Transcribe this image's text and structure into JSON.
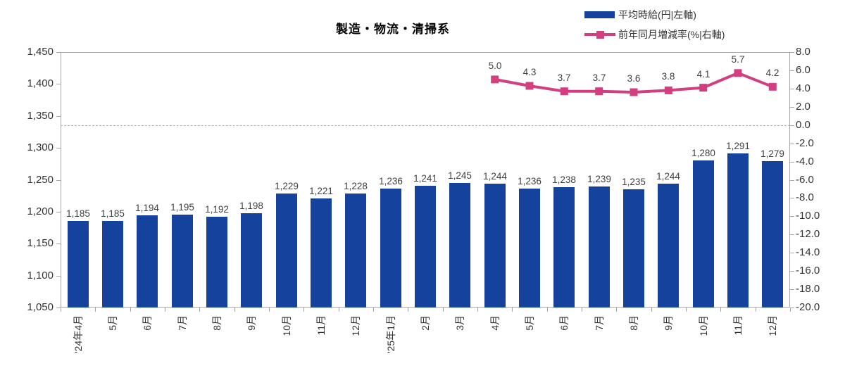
{
  "title": "製造・物流・清掃系",
  "legend": [
    {
      "label": "平均時給(円|左軸)",
      "color": "#15429D",
      "type": "bar"
    },
    {
      "label": "前年同月増減率(%|右軸)",
      "color": "#D23E7F",
      "type": "line"
    }
  ],
  "chart_data": {
    "type": "combo",
    "title": "製造・物流・清掃系",
    "categories": [
      "'24年4月",
      "5月",
      "6月",
      "7月",
      "8月",
      "9月",
      "10月",
      "11月",
      "12月",
      "'25年1月",
      "2月",
      "3月",
      "4月",
      "5月",
      "6月",
      "7月",
      "8月",
      "9月",
      "10月",
      "11月",
      "12月"
    ],
    "series": [
      {
        "name": "平均時給(円|左軸)",
        "type": "bar",
        "axis": "left",
        "color": "#15429D",
        "values": [
          1185,
          1185,
          1194,
          1195,
          1192,
          1198,
          1229,
          1221,
          1228,
          1236,
          1241,
          1245,
          1244,
          1236,
          1238,
          1239,
          1235,
          1244,
          1280,
          1291,
          1279
        ],
        "labels": [
          "1,185",
          "1,185",
          "1,194",
          "1,195",
          "1,192",
          "1,198",
          "1,229",
          "1,221",
          "1,228",
          "1,236",
          "1,241",
          "1,245",
          "1,244",
          "1,236",
          "1,238",
          "1,239",
          "1,235",
          "1,244",
          "1,280",
          "1,291",
          "1,279"
        ]
      },
      {
        "name": "前年同月増減率(%|右軸)",
        "type": "line",
        "axis": "right",
        "color": "#D23E7F",
        "values": [
          null,
          null,
          null,
          null,
          null,
          null,
          null,
          null,
          null,
          null,
          null,
          null,
          5.0,
          4.3,
          3.7,
          3.7,
          3.6,
          3.8,
          4.1,
          5.7,
          4.2
        ],
        "labels": [
          null,
          null,
          null,
          null,
          null,
          null,
          null,
          null,
          null,
          null,
          null,
          null,
          "5.0",
          "4.3",
          "3.7",
          "3.7",
          "3.6",
          "3.8",
          "4.1",
          "5.7",
          "4.2"
        ]
      }
    ],
    "left_axis": {
      "min": 1050,
      "max": 1450,
      "step": 50,
      "tick_labels": [
        "1,450",
        "1,400",
        "1,350",
        "1,300",
        "1,250",
        "1,200",
        "1,150",
        "1,100",
        "1,050"
      ]
    },
    "right_axis": {
      "min": -20,
      "max": 8,
      "step": 2,
      "tick_labels": [
        "8.0",
        "6.0",
        "4.0",
        "2.0",
        "0.0",
        "-2.0",
        "-4.0",
        "-6.0",
        "-8.0",
        "-10.0",
        "-12.0",
        "-14.0",
        "-16.0",
        "-18.0",
        "-20.0"
      ]
    },
    "zero_line": true,
    "grid": "none",
    "legend_position": "top-right"
  }
}
